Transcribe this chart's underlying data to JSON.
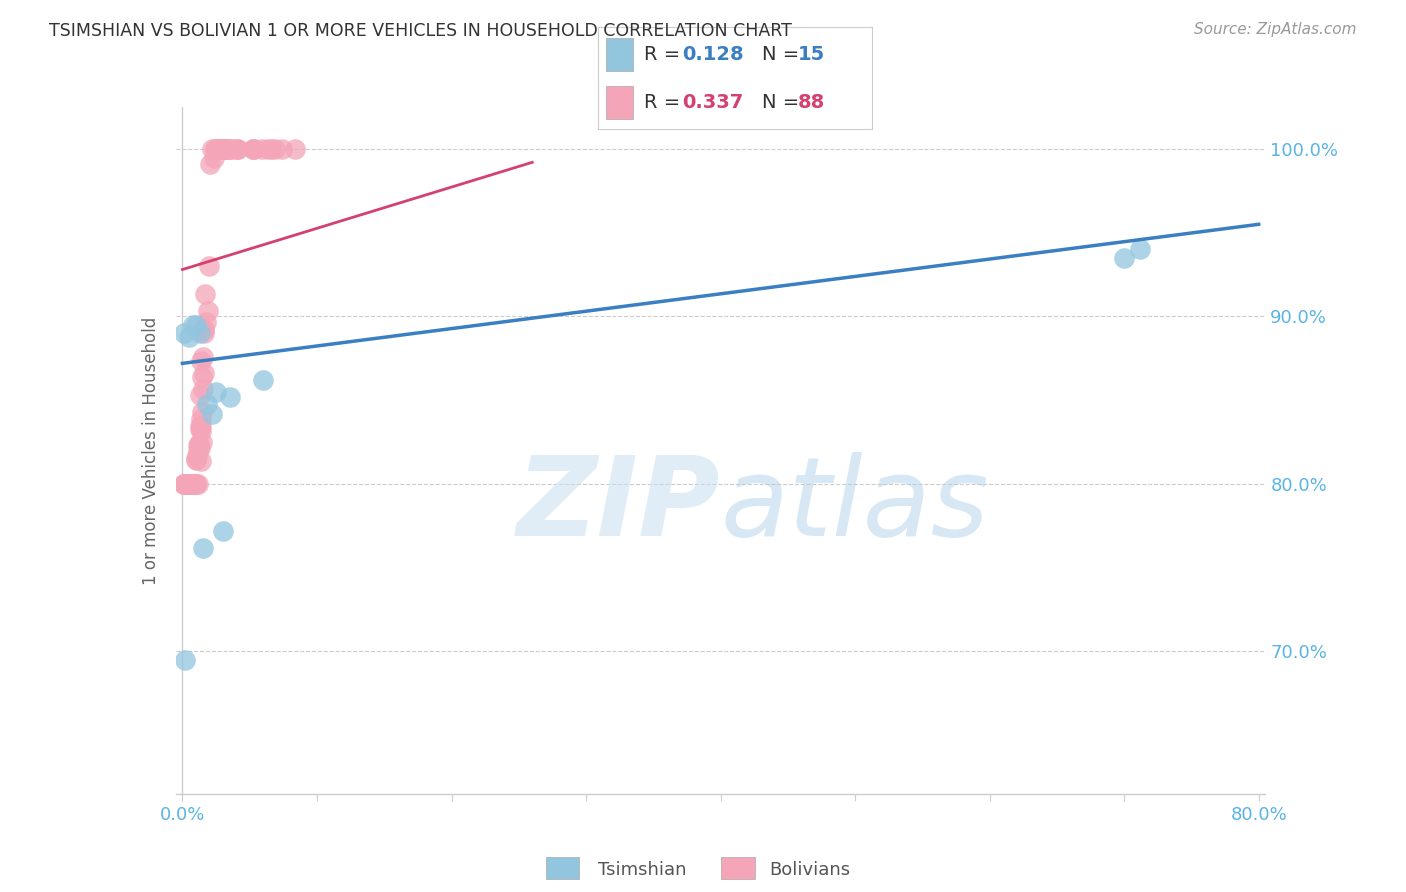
{
  "title": "TSIMSHIAN VS BOLIVIAN 1 OR MORE VEHICLES IN HOUSEHOLD CORRELATION CHART",
  "source": "Source: ZipAtlas.com",
  "ylabel": "1 or more Vehicles in Household",
  "watermark_zip": "ZIP",
  "watermark_atlas": "atlas",
  "xlim": [
    -0.005,
    0.805
  ],
  "ylim": [
    0.615,
    1.025
  ],
  "xtick_vals": [
    0.0,
    0.1,
    0.2,
    0.3,
    0.4,
    0.5,
    0.6,
    0.7,
    0.8
  ],
  "xticklabels": [
    "0.0%",
    "",
    "",
    "",
    "",
    "",
    "",
    "",
    "80.0%"
  ],
  "ytick_vals": [
    0.7,
    0.8,
    0.9,
    1.0
  ],
  "yticklabels": [
    "70.0%",
    "80.0%",
    "90.0%",
    "100.0%"
  ],
  "legend_tsimshian_R": "0.128",
  "legend_tsimshian_N": "15",
  "legend_bolivian_R": "0.337",
  "legend_bolivian_N": "88",
  "tsimshian_color": "#92c5de",
  "bolivian_color": "#f4a5b8",
  "trendline_tsimshian_color": "#3a7fc1",
  "trendline_bolivian_color": "#d44070",
  "legend_text_color": "#333333",
  "legend_value_color": "#3a7fc1",
  "legend_bolivian_value_color": "#d44070",
  "tick_color": "#5ab4e5",
  "grid_color": "#cccccc",
  "tsimshian_x": [
    0.002,
    0.005,
    0.008,
    0.01,
    0.013,
    0.015,
    0.018,
    0.022,
    0.025,
    0.03,
    0.035,
    0.06,
    0.7,
    0.712,
    0.001
  ],
  "tsimshian_y": [
    0.695,
    0.888,
    0.895,
    0.895,
    0.89,
    0.762,
    0.848,
    0.842,
    0.855,
    0.772,
    0.852,
    0.862,
    0.935,
    0.94,
    0.89
  ],
  "tsim_trendline_x": [
    0.0,
    0.8
  ],
  "tsim_trendline_y": [
    0.872,
    0.955
  ],
  "bol_trendline_x": [
    0.0,
    0.26
  ],
  "bol_trendline_y": [
    0.928,
    0.992
  ],
  "bottom_legend_tsimshian_label": "Tsimshian",
  "bottom_legend_bolivian_label": "Bolivians"
}
